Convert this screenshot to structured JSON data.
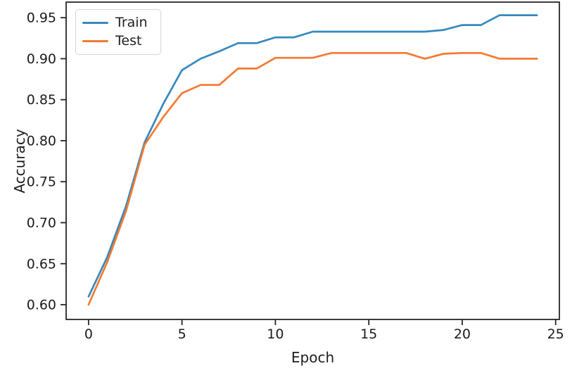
{
  "chart_data": {
    "type": "line",
    "title": "",
    "xlabel": "Epoch",
    "ylabel": "Accuracy",
    "x": [
      0,
      1,
      2,
      3,
      4,
      5,
      6,
      7,
      8,
      9,
      10,
      11,
      12,
      13,
      14,
      15,
      16,
      17,
      18,
      19,
      20,
      21,
      22,
      23,
      24
    ],
    "series": [
      {
        "name": "Train",
        "color": "#3589bd",
        "values": [
          0.61,
          0.658,
          0.72,
          0.798,
          0.845,
          0.886,
          0.9,
          0.909,
          0.919,
          0.919,
          0.926,
          0.926,
          0.933,
          0.933,
          0.933,
          0.933,
          0.933,
          0.933,
          0.933,
          0.935,
          0.941,
          0.941,
          0.953,
          0.953,
          0.953
        ]
      },
      {
        "name": "Test",
        "color": "#f57931",
        "values": [
          0.6,
          0.652,
          0.714,
          0.795,
          0.829,
          0.858,
          0.868,
          0.868,
          0.888,
          0.888,
          0.901,
          0.901,
          0.901,
          0.907,
          0.907,
          0.907,
          0.907,
          0.907,
          0.9,
          0.906,
          0.907,
          0.907,
          0.9,
          0.9,
          0.9
        ]
      }
    ],
    "xlim": [
      -1.2,
      25.2
    ],
    "ylim": [
      0.582,
      0.969
    ],
    "xticks": {
      "values": [
        0,
        5,
        10,
        15,
        20,
        25
      ],
      "labels": [
        "0",
        "5",
        "10",
        "15",
        "20",
        "25"
      ]
    },
    "yticks": {
      "values": [
        0.6,
        0.65,
        0.7,
        0.75,
        0.8,
        0.85,
        0.9,
        0.95
      ],
      "labels": [
        "0.60",
        "0.65",
        "0.70",
        "0.75",
        "0.80",
        "0.85",
        "0.90",
        "0.95"
      ]
    },
    "grid": false,
    "legend": {
      "position": "upper left",
      "entries": [
        "Train",
        "Test"
      ]
    },
    "frame_color": "#262626",
    "text_color": "#1c1c1c",
    "background": "#ffffff"
  }
}
